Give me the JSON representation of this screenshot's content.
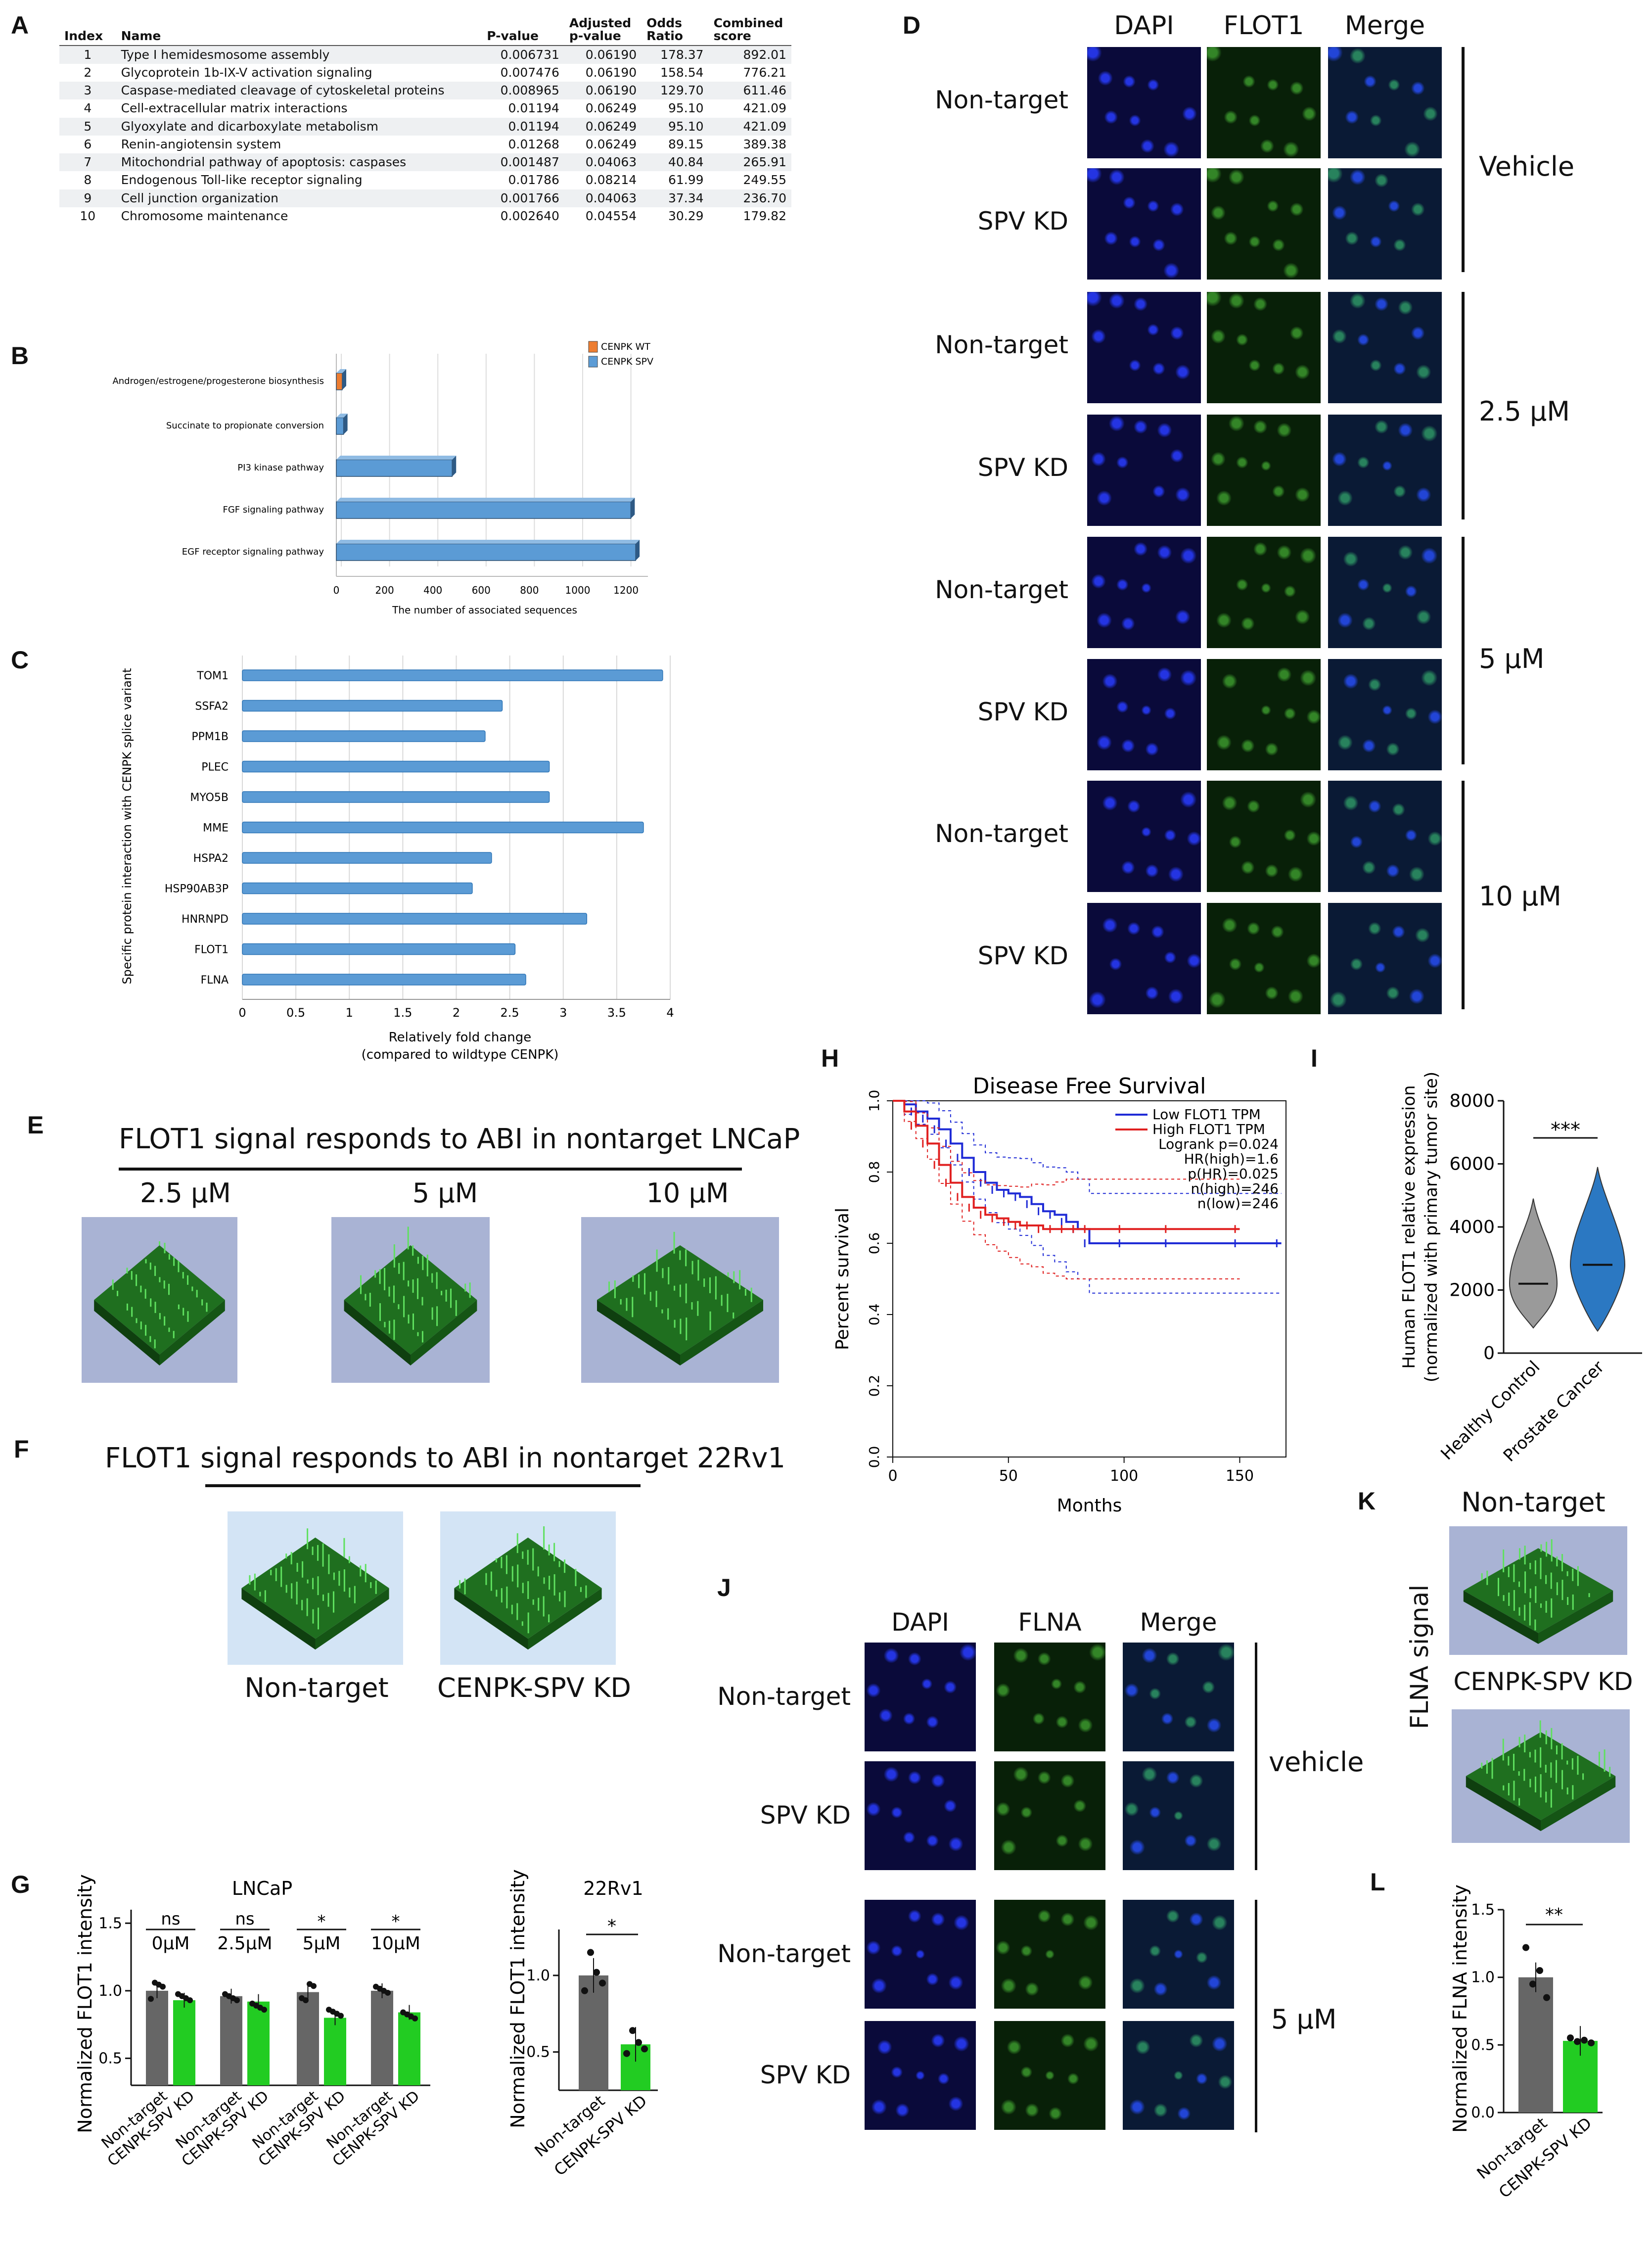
{
  "panels": {
    "A": "A",
    "B": "B",
    "C": "C",
    "D": "D",
    "E": "E",
    "F": "F",
    "G": "G",
    "H": "H",
    "I": "I",
    "J": "J",
    "K": "K",
    "L": "L"
  },
  "table_a": {
    "headers": {
      "index": "Index",
      "name": "Name",
      "pvalue": "P-value",
      "adj": "Adjusted p-value",
      "odds": "Odds Ratio",
      "score": "Combined score"
    },
    "rows": [
      {
        "index": "1",
        "name": "Type I hemidesmosome assembly",
        "pvalue": "0.006731",
        "adj": "0.06190",
        "odds": "178.37",
        "score": "892.01"
      },
      {
        "index": "2",
        "name": "Glycoprotein 1b-IX-V activation signaling",
        "pvalue": "0.007476",
        "adj": "0.06190",
        "odds": "158.54",
        "score": "776.21"
      },
      {
        "index": "3",
        "name": "Caspase-mediated cleavage of cytoskeletal proteins",
        "pvalue": "0.008965",
        "adj": "0.06190",
        "odds": "129.70",
        "score": "611.46"
      },
      {
        "index": "4",
        "name": "Cell-extracellular matrix interactions",
        "pvalue": "0.01194",
        "adj": "0.06249",
        "odds": "95.10",
        "score": "421.09"
      },
      {
        "index": "5",
        "name": "Glyoxylate and dicarboxylate metabolism",
        "pvalue": "0.01194",
        "adj": "0.06249",
        "odds": "95.10",
        "score": "421.09"
      },
      {
        "index": "6",
        "name": "Renin-angiotensin system",
        "pvalue": "0.01268",
        "adj": "0.06249",
        "odds": "89.15",
        "score": "389.38"
      },
      {
        "index": "7",
        "name": "Mitochondrial pathway of apoptosis: caspases",
        "pvalue": "0.001487",
        "adj": "0.04063",
        "odds": "40.84",
        "score": "265.91"
      },
      {
        "index": "8",
        "name": "Endogenous Toll-like receptor signaling",
        "pvalue": "0.01786",
        "adj": "0.08214",
        "odds": "61.99",
        "score": "249.55"
      },
      {
        "index": "9",
        "name": "Cell junction organization",
        "pvalue": "0.001766",
        "adj": "0.04063",
        "odds": "37.34",
        "score": "236.70"
      },
      {
        "index": "10",
        "name": "Chromosome maintenance",
        "pvalue": "0.002640",
        "adj": "0.04554",
        "odds": "30.29",
        "score": "179.82"
      }
    ]
  },
  "panel_d": {
    "columns": [
      "DAPI",
      "FLOT1",
      "Merge"
    ],
    "rows": [
      "Non-target",
      "SPV KD",
      "Non-target",
      "SPV KD",
      "Non-target",
      "SPV KD",
      "Non-target",
      "SPV KD"
    ],
    "groups": [
      "Vehicle",
      "2.5 µM",
      "5 µM",
      "10 µM"
    ]
  },
  "panel_e": {
    "title": "FLOT1 signal responds to ABI in nontarget LNCaP",
    "labels": [
      "2.5 µM",
      "5 µM",
      "10 µM"
    ]
  },
  "panel_f": {
    "title": "FLOT1 signal responds to ABI in nontarget 22Rv1",
    "labels": [
      "Non-target",
      "CENPK-SPV KD"
    ]
  },
  "panel_j": {
    "columns": [
      "DAPI",
      "FLNA",
      "Merge"
    ],
    "rows": [
      "Non-target",
      "SPV KD",
      "Non-target",
      "SPV KD"
    ],
    "groups": [
      "vehicle",
      "5 µM"
    ]
  },
  "panel_k": {
    "side": "FLNA signal",
    "labels": [
      "Non-target",
      "CENPK-SPV KD"
    ]
  },
  "colors": {
    "bar_blue": "#5b9bd5",
    "bar_orange": "#ed7d31",
    "km_blue": "#1f2bd6",
    "km_red": "#e02020",
    "g_gray": "#666666",
    "g_green": "#22cc22"
  },
  "chart_data": [
    {
      "id": "B",
      "type": "bar",
      "orientation": "horizontal",
      "categories": [
        "Androgen/estrogene/progesterone biosynthesis",
        "Succinate to propionate conversion",
        "PI3 kinase pathway",
        "FGF signaling pathway",
        "EGF receptor signaling pathway"
      ],
      "series": [
        {
          "name": "CENPK WT",
          "color": "#ed7d31",
          "values": [
            20,
            null,
            null,
            null,
            null
          ]
        },
        {
          "name": "CENPK SPV",
          "color": "#5b9bd5",
          "values": [
            null,
            30,
            480,
            1220,
            1240
          ]
        }
      ],
      "xlabel": "The number of associated sequences",
      "xticks": [
        "0",
        "200",
        "400",
        "600",
        "800",
        "1000",
        "1200"
      ],
      "xlim": [
        0,
        1250
      ]
    },
    {
      "id": "C",
      "type": "bar",
      "orientation": "horizontal",
      "categories": [
        "TOM1",
        "SSFA2",
        "PPM1B",
        "PLEC",
        "MYO5B",
        "MME",
        "HSPA2",
        "HSP90AB3P",
        "HNRNPD",
        "FLOT1",
        "FLNA"
      ],
      "values": [
        3.93,
        2.43,
        2.27,
        2.87,
        2.87,
        3.75,
        2.33,
        2.15,
        3.22,
        2.55,
        2.65
      ],
      "ylabel": "Specific protein interaction with CENPK splice variant",
      "xlabel": "Relatively fold change",
      "xlabel2": "(compared to wildtype CENPK)",
      "xticks": [
        "0",
        "0.5",
        "1",
        "1.5",
        "2",
        "2.5",
        "3",
        "3.5",
        "4"
      ],
      "xlim": [
        0,
        4
      ]
    },
    {
      "id": "H",
      "type": "line",
      "title": "Disease Free Survival",
      "xlabel": "Months",
      "ylabel": "Percent survival",
      "xticks": [
        "0",
        "50",
        "100",
        "150"
      ],
      "yticks": [
        "0.0",
        "0.2",
        "0.4",
        "0.6",
        "0.8",
        "1.0"
      ],
      "xlim": [
        0,
        170
      ],
      "ylim": [
        0,
        1
      ],
      "legend": [
        "Low FLOT1 TPM",
        "High FLOT1 TPM"
      ],
      "stats": [
        "Logrank p=0.024",
        "HR(high)=1.6",
        "p(HR)=0.025",
        "n(high)=246",
        "n(low)=246"
      ],
      "series": [
        {
          "name": "Low FLOT1 TPM",
          "color": "#1f2bd6",
          "x": [
            0,
            5,
            10,
            15,
            20,
            25,
            30,
            35,
            40,
            45,
            50,
            55,
            60,
            65,
            70,
            75,
            80,
            85,
            100,
            120,
            150,
            168
          ],
          "y": [
            1.0,
            0.99,
            0.97,
            0.95,
            0.92,
            0.88,
            0.84,
            0.8,
            0.77,
            0.75,
            0.74,
            0.73,
            0.71,
            0.69,
            0.68,
            0.66,
            0.64,
            0.6,
            0.6,
            0.6,
            0.6,
            0.6
          ]
        },
        {
          "name": "High FLOT1 TPM",
          "color": "#e02020",
          "x": [
            0,
            5,
            10,
            15,
            20,
            25,
            30,
            35,
            40,
            45,
            50,
            55,
            60,
            65,
            70,
            75,
            80,
            85,
            100,
            120,
            150
          ],
          "y": [
            1.0,
            0.97,
            0.93,
            0.88,
            0.82,
            0.77,
            0.73,
            0.7,
            0.68,
            0.67,
            0.66,
            0.65,
            0.65,
            0.64,
            0.64,
            0.64,
            0.64,
            0.64,
            0.64,
            0.64,
            0.64
          ]
        }
      ]
    },
    {
      "id": "I",
      "type": "violin",
      "categories": [
        "Healthy Control",
        "Prostate Cancer"
      ],
      "ylabel": "Human FLOT1 relative expression",
      "ylabel2": "(normalized with primary tumor site)",
      "yticks": [
        "0",
        "2000",
        "4000",
        "6000",
        "8000"
      ],
      "ylim": [
        0,
        8000
      ],
      "medians": [
        2200,
        2800
      ],
      "ranges": [
        [
          800,
          4900
        ],
        [
          700,
          5900
        ]
      ],
      "significance": "***"
    },
    {
      "id": "G1",
      "type": "bar",
      "title": "LNCaP",
      "groups": [
        "0µM",
        "2.5µM",
        "5µM",
        "10µM"
      ],
      "significance": [
        "ns",
        "ns",
        "*",
        "*"
      ],
      "categories": [
        "Non-target",
        "CENPK-SPV KD"
      ],
      "values": [
        [
          1.0,
          0.93
        ],
        [
          0.96,
          0.92
        ],
        [
          0.99,
          0.8
        ],
        [
          1.0,
          0.84
        ]
      ],
      "ylabel": "Normalized FLOT1 intensity",
      "yticks": [
        "0.5",
        "1.0",
        "1.5"
      ],
      "ylim": [
        0.3,
        1.6
      ]
    },
    {
      "id": "G2",
      "type": "bar",
      "title": "22Rv1",
      "categories": [
        "Non-target",
        "CENPK-SPV KD"
      ],
      "values": [
        1.0,
        0.55
      ],
      "ylabel": "Normalized FLOT1 intensity",
      "yticks": [
        "0.5",
        "1.0"
      ],
      "ylim": [
        0.25,
        1.3
      ],
      "significance": "*"
    },
    {
      "id": "L",
      "type": "bar",
      "categories": [
        "Non-target",
        "CENPK-SPV KD"
      ],
      "values": [
        1.0,
        0.53
      ],
      "ylabel": "Normalized FLNA intensity",
      "yticks": [
        "0.0",
        "0.5",
        "1.0",
        "1.5"
      ],
      "ylim": [
        0,
        1.5
      ],
      "significance": "**"
    }
  ]
}
